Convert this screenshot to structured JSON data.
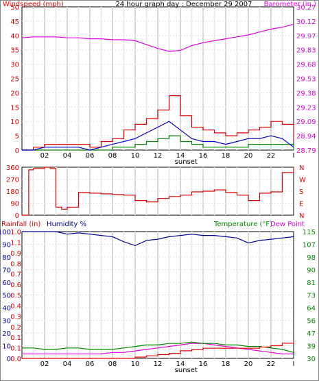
{
  "chart_data": [
    {
      "type": "line",
      "title": "24 hour graph day : December 29 2007",
      "y_left_label": "Windspeed (mph)",
      "y_right_label": "Barometer (in.)",
      "x_ticks": [
        "02",
        "04",
        "06",
        "08",
        "10",
        "12",
        "14",
        "16",
        "18",
        "20",
        "22",
        "I"
      ],
      "x_annotation": "sunset",
      "ylim": [
        0,
        50
      ],
      "y_ticks": [
        "0",
        "5",
        "10",
        "15",
        "20",
        "25",
        "30",
        "35",
        "40",
        "45",
        "50"
      ],
      "y2lim": [
        28.79,
        30.27
      ],
      "y2_ticks": [
        "28.79",
        "28.94",
        "29.09",
        "29.23",
        "29.38",
        "29.53",
        "29.68",
        "29.83",
        "29.97",
        "30.12",
        "30.27"
      ],
      "grid": true,
      "colors": {
        "gust": "#dd0000",
        "avg": "#0000cc",
        "low": "#008800",
        "barometer": "#dd00dd"
      },
      "x": [
        0,
        1,
        2,
        3,
        4,
        5,
        6,
        7,
        8,
        9,
        10,
        11,
        12,
        13,
        14,
        15,
        16,
        17,
        18,
        19,
        20,
        21,
        22,
        23,
        24
      ],
      "series": [
        {
          "values": [
            0,
            1,
            2,
            2,
            2,
            2,
            1,
            3,
            4,
            7,
            9,
            11,
            14,
            19,
            12,
            8,
            7,
            6,
            5,
            6,
            7,
            8,
            10,
            9,
            3
          ]
        },
        {
          "values": [
            0,
            0,
            1,
            1,
            1,
            1,
            0,
            1,
            2,
            3,
            4,
            6,
            8,
            10,
            7,
            4,
            3,
            3,
            2,
            3,
            4,
            4,
            5,
            4,
            1
          ]
        },
        {
          "values": [
            0,
            0,
            0,
            0,
            0,
            0,
            0,
            0,
            1,
            1,
            2,
            3,
            4,
            5,
            3,
            2,
            1,
            1,
            1,
            1,
            2,
            2,
            2,
            2,
            0
          ]
        },
        {
          "values": [
            29.95,
            29.96,
            29.96,
            29.96,
            29.95,
            29.95,
            29.94,
            29.94,
            29.93,
            29.93,
            29.92,
            29.88,
            29.84,
            29.81,
            29.82,
            29.87,
            29.9,
            29.92,
            29.94,
            29.96,
            29.98,
            30.01,
            30.04,
            30.06,
            30.09
          ]
        }
      ]
    },
    {
      "type": "line",
      "y_right_labels": [
        "N",
        "W",
        "S",
        "E",
        "N"
      ],
      "ylim": [
        0,
        360
      ],
      "y_ticks": [
        "0",
        "90",
        "180",
        "270",
        "360"
      ],
      "color": "#dd0000",
      "x": [
        0,
        0.3,
        0.6,
        1,
        2,
        2.5,
        3,
        3.5,
        4,
        5,
        6,
        7,
        8,
        9,
        10,
        11,
        12,
        13,
        14,
        15,
        16,
        17,
        18,
        19,
        20,
        21,
        22,
        23,
        24
      ],
      "series": [
        {
          "values": [
            0,
            0,
            340,
            350,
            360,
            350,
            60,
            45,
            60,
            170,
            165,
            160,
            155,
            150,
            110,
            100,
            125,
            140,
            150,
            175,
            180,
            190,
            170,
            150,
            110,
            165,
            175,
            320,
            360
          ]
        }
      ]
    },
    {
      "type": "line",
      "y_left_labels": [
        "Rainfall (in)",
        "Humidity %"
      ],
      "y_right_labels": [
        "Temperature (°F)",
        "Dew Point"
      ],
      "rain_ticks": [
        "0.0",
        "0.1",
        "0.1",
        "0.2",
        "0.3",
        "0.4",
        "0.5",
        "0.6",
        "0.7",
        "0.8",
        "0.9",
        "1.1",
        "1.0"
      ],
      "humidity_ticks": [
        "0",
        "10",
        "20",
        "30",
        "40",
        "50",
        "60",
        "70",
        "80",
        "90",
        "100"
      ],
      "y_right_ticks": [
        "30",
        "39",
        "47",
        "56",
        "64",
        "73",
        "81",
        "90",
        "98",
        "107",
        "115"
      ],
      "ylim": [
        0,
        100
      ],
      "y2lim": [
        30,
        115
      ],
      "x_ticks": [
        "02",
        "04",
        "06",
        "08",
        "10",
        "12",
        "14",
        "16",
        "18",
        "20",
        "22",
        "I"
      ],
      "x_annotation": "sunset",
      "colors": {
        "humidity": "#000099",
        "rain": "#dd0000",
        "temperature": "#008800",
        "dewpoint": "#dd00dd"
      },
      "x": [
        0,
        1,
        2,
        3,
        4,
        5,
        6,
        7,
        8,
        9,
        10,
        11,
        12,
        13,
        14,
        15,
        16,
        17,
        18,
        19,
        20,
        21,
        22,
        23,
        24
      ],
      "series": [
        {
          "values": [
            100,
            100,
            100,
            100,
            98,
            99,
            98,
            97,
            96,
            92,
            89,
            93,
            94,
            96,
            97,
            98,
            97,
            97,
            96,
            95,
            91,
            93,
            94,
            95,
            96
          ]
        },
        {
          "values": [
            0,
            0,
            0,
            0,
            0,
            0,
            0,
            0,
            0,
            0,
            1,
            2,
            3,
            4,
            6,
            7,
            8,
            8,
            8,
            8,
            8,
            9,
            10,
            12,
            15
          ]
        },
        {
          "values": [
            37,
            37,
            36,
            36,
            37,
            37,
            36,
            36,
            36,
            37,
            38,
            39,
            39,
            40,
            40,
            41,
            40,
            40,
            39,
            39,
            38,
            38,
            37,
            36,
            34
          ]
        },
        {
          "values": [
            33,
            33,
            33,
            33,
            33,
            33,
            33,
            33,
            34,
            34,
            35,
            36,
            37,
            38,
            39,
            40,
            40,
            39,
            38,
            37,
            36,
            35,
            34,
            33,
            33
          ]
        }
      ]
    }
  ]
}
